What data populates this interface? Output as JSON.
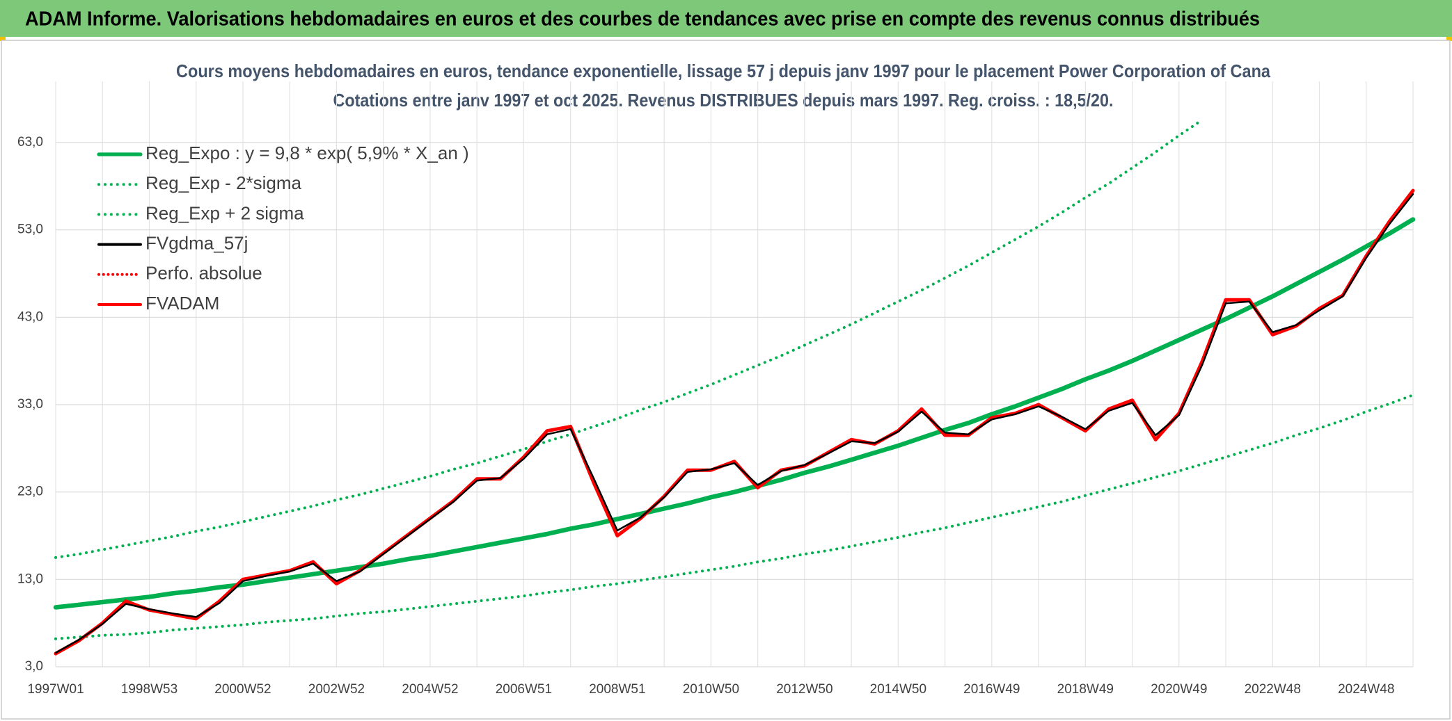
{
  "header": {
    "title": "ADAM Informe. Valorisations hebdomadaires en euros et des courbes de tendances avec prise en compte des revenus connus distribués"
  },
  "chart_data": {
    "type": "line",
    "title": "Cours moyens hebdomadaires en euros, tendance exponentielle, lissage 57 j depuis janv 1997 pour le placement Power Corporation of Cana",
    "subtitle": "Cotations entre janv 1997 et oct 2025. Revenus DISTRIBUES depuis mars 1997. Reg. croiss. : 18,5/20.",
    "categories": [
      "1997W01",
      null,
      null,
      null,
      "1998W53",
      null,
      null,
      null,
      "2000W52",
      null,
      null,
      null,
      "2002W52",
      null,
      null,
      null,
      "2004W52",
      null,
      null,
      null,
      "2006W51",
      null,
      null,
      null,
      "2008W51",
      null,
      null,
      null,
      "2010W50",
      null,
      null,
      null,
      "2012W50",
      null,
      null,
      null,
      "2014W50",
      null,
      null,
      null,
      "2016W49",
      null,
      null,
      null,
      "2018W49",
      null,
      null,
      null,
      "2020W49",
      null,
      null,
      null,
      "2022W48",
      null,
      null,
      null,
      "2024W48",
      null,
      null
    ],
    "ylim": [
      3,
      70
    ],
    "yticks": [
      {
        "value": 3,
        "label": "3,0"
      },
      {
        "value": 13,
        "label": "13,0"
      },
      {
        "value": 23,
        "label": "23,0"
      },
      {
        "value": 33,
        "label": "33,0"
      },
      {
        "value": 43,
        "label": "43,0"
      },
      {
        "value": 53,
        "label": "53,0"
      },
      {
        "value": 63,
        "label": "63,0"
      }
    ],
    "grid": true,
    "legend": "top-left",
    "series": [
      {
        "name": "Reg_Expo : y = 9,8 * exp( 5,9% *  X_an )",
        "color": "#00b050",
        "style": "solid",
        "width": 6.5,
        "values": [
          9.8,
          10.1,
          10.4,
          10.7,
          11.0,
          11.4,
          11.7,
          12.1,
          12.4,
          12.8,
          13.2,
          13.6,
          14.0,
          14.4,
          14.8,
          15.3,
          15.7,
          16.2,
          16.7,
          17.2,
          17.7,
          18.2,
          18.8,
          19.3,
          19.9,
          20.5,
          21.1,
          21.7,
          22.4,
          23.0,
          23.7,
          24.4,
          25.2,
          25.9,
          26.7,
          27.5,
          28.3,
          29.2,
          30.1,
          30.9,
          31.9,
          32.8,
          33.8,
          34.8,
          35.9,
          36.9,
          38.0,
          39.2,
          40.4,
          41.6,
          42.8,
          44.1,
          45.4,
          46.8,
          48.2,
          49.6,
          51.1,
          52.6,
          54.2
        ]
      },
      {
        "name": "Reg_Exp - 2*sigma",
        "color": "#00b050",
        "style": "dotted",
        "width": 4,
        "values": [
          6.2,
          6.4,
          6.6,
          6.7,
          6.9,
          7.2,
          7.4,
          7.6,
          7.8,
          8.1,
          8.3,
          8.5,
          8.8,
          9.1,
          9.3,
          9.6,
          9.9,
          10.2,
          10.5,
          10.8,
          11.1,
          11.5,
          11.8,
          12.2,
          12.5,
          12.9,
          13.3,
          13.7,
          14.1,
          14.5,
          15.0,
          15.4,
          15.9,
          16.3,
          16.8,
          17.3,
          17.8,
          18.4,
          18.9,
          19.5,
          20.1,
          20.7,
          21.3,
          21.9,
          22.6,
          23.3,
          24.0,
          24.7,
          25.4,
          26.2,
          27.0,
          27.8,
          28.6,
          29.5,
          30.3,
          31.2,
          32.2,
          33.1,
          34.1
        ]
      },
      {
        "name": "Reg_Exp + 2 sigma",
        "color": "#00b050",
        "style": "dotted",
        "width": 4,
        "values": [
          15.5,
          15.9,
          16.4,
          16.9,
          17.4,
          17.9,
          18.5,
          19.0,
          19.6,
          20.2,
          20.8,
          21.4,
          22.1,
          22.7,
          23.4,
          24.1,
          24.8,
          25.6,
          26.3,
          27.1,
          27.9,
          28.8,
          29.6,
          30.5,
          31.4,
          32.4,
          33.3,
          34.3,
          35.3,
          36.4,
          37.5,
          38.6,
          39.8,
          41.0,
          42.2,
          43.5,
          44.8,
          46.1,
          47.5,
          48.9,
          50.4,
          51.9,
          53.4,
          55.0,
          56.7,
          58.3,
          60.1,
          61.9,
          63.8,
          65.6,
          null,
          null,
          null,
          null,
          null,
          null,
          null,
          null,
          null
        ]
      },
      {
        "name": "FVgdma_57j",
        "color": "#000000",
        "style": "solid",
        "width": 2.5,
        "values": [
          4.6,
          6.1,
          7.9,
          10.2,
          9.6,
          9.1,
          8.7,
          10.3,
          12.8,
          13.4,
          13.9,
          14.8,
          12.8,
          13.9,
          15.9,
          17.9,
          19.9,
          21.9,
          24.3,
          24.6,
          26.8,
          29.6,
          30.2,
          24.5,
          18.6,
          20.1,
          22.4,
          25.3,
          25.6,
          26.3,
          23.8,
          25.4,
          26.1,
          27.4,
          28.8,
          28.6,
          29.9,
          32.2,
          29.8,
          29.6,
          31.3,
          31.9,
          32.8,
          31.6,
          30.2,
          32.3,
          33.2,
          29.5,
          31.8,
          37.6,
          44.6,
          44.8,
          41.3,
          42.1,
          43.8,
          45.4,
          49.8,
          53.7,
          57.1
        ]
      },
      {
        "name": "Perfo. absolue",
        "color": "#ff0000",
        "style": "dotted",
        "width": 3
      },
      {
        "name": "FVADAM",
        "color": "#ff0000",
        "style": "solid",
        "width": 5,
        "values": [
          4.5,
          6,
          8,
          10.5,
          9.5,
          9,
          8.5,
          10.5,
          13,
          13.5,
          14,
          15,
          12.5,
          14,
          16,
          18,
          20,
          22,
          24.5,
          24.5,
          27,
          30,
          30.5,
          24,
          18,
          20,
          22.5,
          25.5,
          25.5,
          26.5,
          23.5,
          25.5,
          26,
          27.5,
          29,
          28.5,
          30,
          32.5,
          29.5,
          29.5,
          31.5,
          32,
          33,
          31.5,
          30,
          32.5,
          33.5,
          29,
          32,
          38,
          45,
          45,
          41,
          42,
          44,
          45.5,
          50,
          54,
          57.5
        ]
      }
    ]
  }
}
